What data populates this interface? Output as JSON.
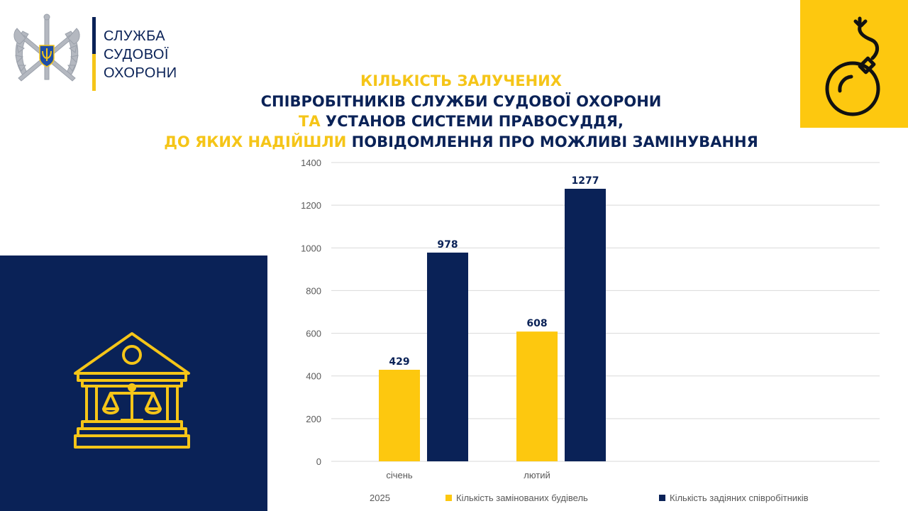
{
  "logo": {
    "lines": [
      "СЛУЖБА",
      "СУДОВОЇ",
      "ОХОРОНИ"
    ]
  },
  "title": {
    "line1": "КІЛЬКІСТЬ ЗАЛУЧЕНИХ",
    "line2": "СПІВРОБІТНИКІВ СЛУЖБИ СУДОВОЇ ОХОРОНИ",
    "line3_a": "ТА",
    "line3_b": " УСТАНОВ СИСТЕМИ ПРАВОСУДДЯ,",
    "line4_a": "ДО ЯКИХ НАДІЙШЛИ",
    "line4_b": " ПОВІДОМЛЕННЯ ПРО МОЖЛИВІ ЗАМІНУВАННЯ"
  },
  "colors": {
    "navy": "#0a2257",
    "yellow": "#fdc80f",
    "axis_text": "#595959",
    "grid": "#d9d9d9"
  },
  "icons": {
    "logo": "court-guard-emblem-icon",
    "top_right": "bomb-icon",
    "left_panel": "courthouse-scales-icon"
  },
  "chart_data": {
    "type": "bar",
    "categories": [
      "січень",
      "лютий"
    ],
    "series": [
      {
        "name": "Кількість замінованих будівель",
        "values": [
          429,
          608
        ],
        "color": "#fdc80f"
      },
      {
        "name": "Кількість задіяних співробітників",
        "values": [
          978,
          1277
        ],
        "color": "#0a2257"
      }
    ],
    "ylim": [
      0,
      1400
    ],
    "yticks": [
      0,
      200,
      400,
      600,
      800,
      1000,
      1200,
      1400
    ],
    "xlabel": "2025",
    "data_labels": true,
    "grid": true,
    "legend": "bottom"
  }
}
